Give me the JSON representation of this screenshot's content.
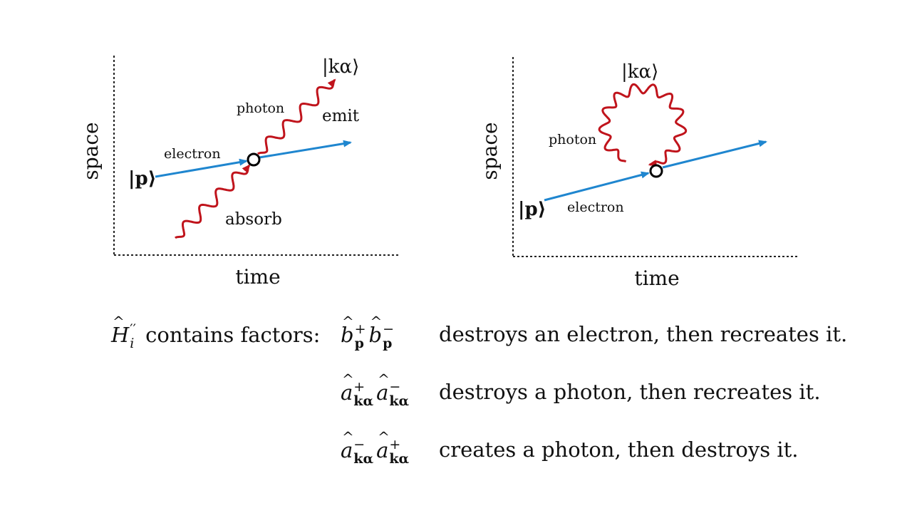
{
  "left_diagram": {
    "axis_x": "time",
    "axis_y": "space",
    "state_in": "|p⟩",
    "state_photon": "|kα⟩",
    "label_electron": "electron",
    "label_photon": "photon",
    "label_emit": "emit",
    "label_absorb": "absorb"
  },
  "right_diagram": {
    "axis_x": "time",
    "axis_y": "space",
    "state_in": "|p⟩",
    "state_photon": "|kα⟩",
    "label_electron": "electron",
    "label_photon": "photon"
  },
  "colors": {
    "electron": "#1f86cf",
    "photon": "#c0141c",
    "axis": "#222222"
  },
  "equations": {
    "intro": "contains factors:",
    "hamiltonian": "H",
    "hamiltonian_sub": "i",
    "hamiltonian_sup": "′′",
    "rows": [
      {
        "op1": "b",
        "op1_sup": "+",
        "op1_sub": "p",
        "op2": "b",
        "op2_sup": "−",
        "op2_sub": "p",
        "text": "destroys an electron, then recreates it."
      },
      {
        "op1": "a",
        "op1_sup": "+",
        "op1_sub": "kα",
        "op2": "a",
        "op2_sup": "−",
        "op2_sub": "kα",
        "text": "destroys a photon, then recreates it."
      },
      {
        "op1": "a",
        "op1_sup": "−",
        "op1_sub": "kα",
        "op2": "a",
        "op2_sup": "+",
        "op2_sub": "kα",
        "text": "creates a photon, then destroys it."
      }
    ]
  }
}
